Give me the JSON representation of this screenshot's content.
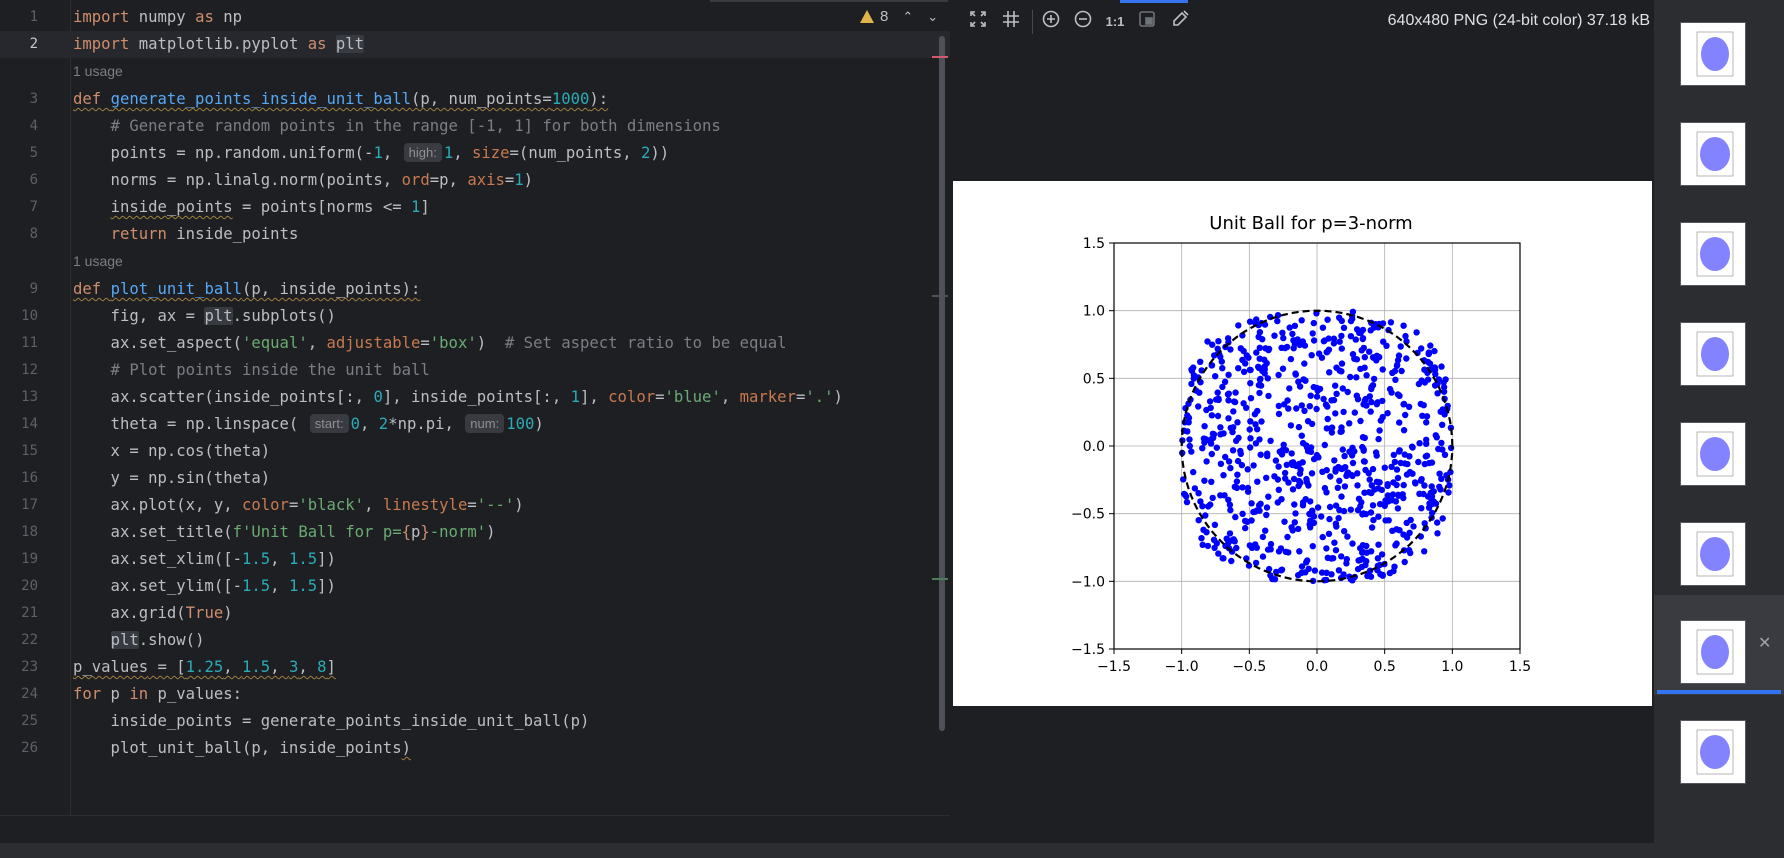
{
  "editor": {
    "warning_count": "8",
    "lines": [
      {
        "n": "1"
      },
      {
        "n": "2"
      },
      {
        "n": "3"
      },
      {
        "n": "4"
      },
      {
        "n": "5"
      },
      {
        "n": "6"
      },
      {
        "n": "7"
      },
      {
        "n": "8"
      },
      {
        "n": "9"
      },
      {
        "n": "10"
      },
      {
        "n": "11"
      },
      {
        "n": "12"
      },
      {
        "n": "13"
      },
      {
        "n": "14"
      },
      {
        "n": "15"
      },
      {
        "n": "16"
      },
      {
        "n": "17"
      },
      {
        "n": "18"
      },
      {
        "n": "19"
      },
      {
        "n": "20"
      },
      {
        "n": "21"
      },
      {
        "n": "22"
      },
      {
        "n": "23"
      },
      {
        "n": "24"
      },
      {
        "n": "25"
      },
      {
        "n": "26"
      }
    ],
    "usage_label": "1 usage",
    "code": {
      "l1": [
        "import",
        " numpy ",
        "as",
        " np"
      ],
      "l2": [
        "import",
        " matplotlib.pyplot ",
        "as",
        " ",
        "plt"
      ],
      "l3": [
        "def",
        " ",
        "generate_points_inside_unit_ball",
        "(p, num_points=",
        "1000",
        "):"
      ],
      "l4": "    # Generate random points in the range [-1, 1] for both dimensions",
      "l5": [
        "    points = np.random.uniform(-",
        "1",
        ", ",
        "high:",
        "1",
        ", ",
        "size",
        "=(num_points, ",
        "2",
        "))"
      ],
      "l6": [
        "    norms = np.linalg.norm(points, ",
        "ord",
        "=p, ",
        "axis",
        "=",
        "1",
        ")"
      ],
      "l7": [
        "    ",
        "inside_points",
        " = points[norms <= ",
        "1",
        "]"
      ],
      "l8": [
        "    ",
        "return",
        " inside_points"
      ],
      "l9": [
        "def",
        " ",
        "plot_unit_ball",
        "(p, inside_points):"
      ],
      "l10": "    fig, ax = plt.subplots()",
      "l10a": [
        "    fig, ax = ",
        "plt",
        ".subplots()"
      ],
      "l11": [
        "    ax.set_aspect(",
        "'equal'",
        ", ",
        "adjustable",
        "=",
        "'box'",
        ")  ",
        "# Set aspect ratio to be equal"
      ],
      "l12": "    # Plot points inside the unit ball",
      "l13": [
        "    ax.scatter(inside_points[:, ",
        "0",
        "], inside_points[:, ",
        "1",
        "], ",
        "color",
        "=",
        "'blue'",
        ", ",
        "marker",
        "=",
        "'.'",
        ")"
      ],
      "l14": [
        "    theta = np.linspace( ",
        "start:",
        "0",
        ", ",
        "2",
        "*np.pi, ",
        "num:",
        "100",
        ")"
      ],
      "l15": "    x = np.cos(theta)",
      "l16": "    y = np.sin(theta)",
      "l17": [
        "    ax.plot(x, y, ",
        "color",
        "=",
        "'black'",
        ", ",
        "linestyle",
        "=",
        "'--'",
        ")"
      ],
      "l18": [
        "    ax.set_title(",
        "f'Unit Ball for p=",
        "{",
        "p",
        "}",
        "-norm'",
        ")"
      ],
      "l19": [
        "    ax.set_xlim([-",
        "1.5",
        ", ",
        "1.5",
        "])"
      ],
      "l20": [
        "    ax.set_ylim([-",
        "1.5",
        ", ",
        "1.5",
        "])"
      ],
      "l21": [
        "    ax.grid(",
        "True",
        ")"
      ],
      "l22": [
        "    ",
        "plt",
        ".show()"
      ],
      "l23": [
        "p_values",
        " = [",
        "1.25",
        ", ",
        "1.5",
        ", ",
        "3",
        ", ",
        "8",
        "]"
      ],
      "l24": [
        "for",
        " p ",
        "in",
        " p_values:"
      ],
      "l25": "    inside_points = generate_points_inside_unit_ball(p)",
      "l26": [
        "    plot_unit_ball(p, inside_points",
        ")"
      ]
    }
  },
  "viewer": {
    "toolbar_icons": [
      "fit-icon",
      "grid-icon",
      "zoom-in-icon",
      "zoom-out-icon",
      "actual-size-icon",
      "background-icon",
      "color-picker-icon"
    ],
    "actual_size_label": "1:1",
    "image_info": "640x480 PNG (24-bit color) 37.18 kB"
  },
  "chart_data": {
    "type": "scatter",
    "title": "Unit Ball for p=3-norm",
    "xlim": [
      -1.5,
      1.5
    ],
    "ylim": [
      -1.5,
      1.5
    ],
    "xticks": [
      "−1.5",
      "−1.0",
      "−0.5",
      "0.0",
      "0.5",
      "1.0",
      "1.5"
    ],
    "yticks": [
      "−1.5",
      "−1.0",
      "−0.5",
      "0.0",
      "0.5",
      "1.0",
      "1.5"
    ],
    "grid": true,
    "points_color": "#0000ff",
    "circle_color": "#000000",
    "circle_style": "dashed",
    "p": 3,
    "approx_points": 800
  },
  "thumbnails": {
    "count": 8,
    "selected_index": 6
  }
}
